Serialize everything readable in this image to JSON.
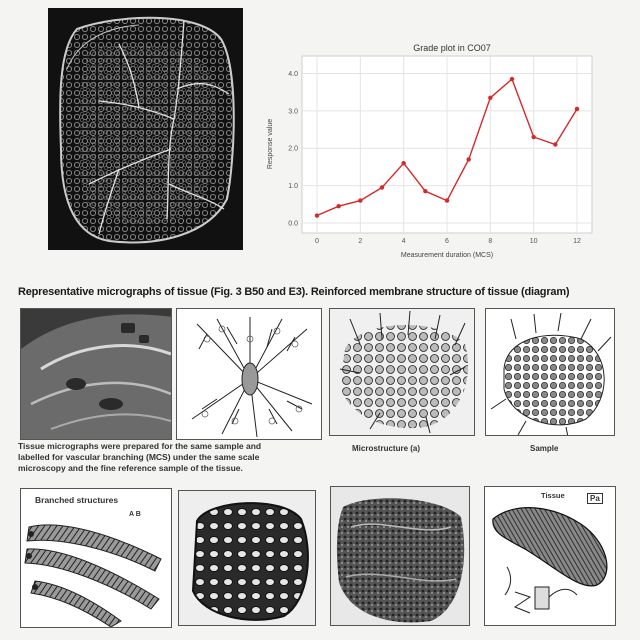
{
  "chart_data": {
    "type": "line",
    "title": "Grade plot in CO07",
    "xlabel": "Measurement duration (MCS)",
    "ylabel": "Response value",
    "x": [
      0,
      1,
      2,
      3,
      4,
      5,
      6,
      7,
      8,
      9,
      10,
      11,
      12
    ],
    "series": [
      {
        "values": [
          0.2,
          0.45,
          0.6,
          0.95,
          1.6,
          0.85,
          0.6,
          1.7,
          3.35,
          3.85,
          2.3,
          2.1,
          3.05
        ]
      }
    ],
    "xticks": [
      "0",
      "2",
      "4",
      "6",
      "8",
      "10",
      "12"
    ],
    "yticks": [
      "0.0",
      "1.0",
      "2.0",
      "3.0",
      "4.0"
    ],
    "xlim": [
      0,
      12
    ],
    "ylim": [
      0,
      4.2
    ],
    "grid": true,
    "line_color": "#d42a2a"
  },
  "figure": {
    "heading": "Representative micrographs of tissue (Fig. 3 B50 and E3). Reinforced membrane structure of tissue (diagram)",
    "paragraph": [
      "Tissue micrographs were prepared for the same sample and",
      "labelled for vascular branching (MCS) under the same scale",
      "microscopy and the fine reference sample of the tissue."
    ],
    "row1_captions": [
      "",
      "",
      "Microstructure (a)",
      "Sample"
    ],
    "row2_captions": [
      "Branched structures",
      "",
      "",
      "Tissue"
    ],
    "row2_marks": [
      "A B",
      "",
      "",
      "Pa"
    ]
  }
}
